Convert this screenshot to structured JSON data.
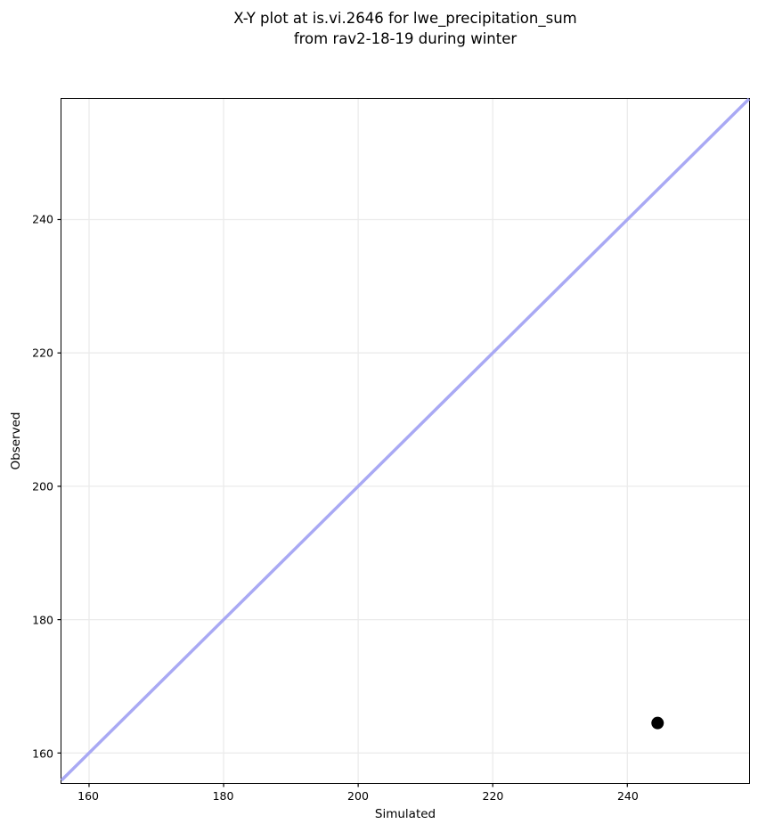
{
  "chart_data": {
    "type": "scatter",
    "title": "X-Y plot at is.vi.2646 for lwe_precipitation_sum\nfrom rav2-18-19 during winter",
    "xlabel": "Simulated",
    "ylabel": "Observed",
    "xlim": [
      155.9,
      258.1
    ],
    "ylim": [
      155.5,
      258.1
    ],
    "xticks": [
      160,
      180,
      200,
      220,
      240
    ],
    "yticks": [
      160,
      180,
      200,
      220,
      240
    ],
    "grid": true,
    "legend": false,
    "identity_line": {
      "rule": "y=x",
      "width": 3.5
    },
    "points": [
      {
        "x": 244.5,
        "y": 164.5
      }
    ],
    "point_radius": 7,
    "colors": {
      "identity_line": "#a9a9f4",
      "point": "#000000",
      "grid": "#ebebeb",
      "spine": "#000000",
      "tick": "#000000"
    }
  }
}
